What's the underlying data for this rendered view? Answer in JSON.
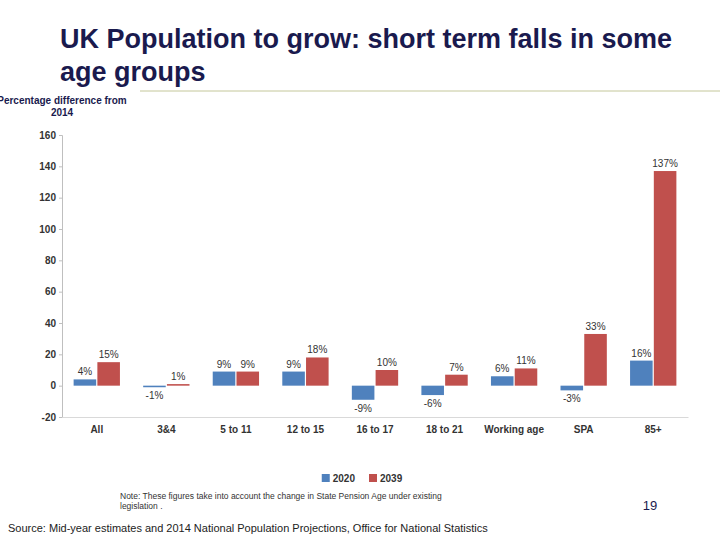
{
  "chart_data": {
    "type": "bar",
    "title": "UK Population to grow: short term falls in some age groups",
    "y_label": "Percentage difference from 2014",
    "categories": [
      "All",
      "3&4",
      "5 to 11",
      "12 to 15",
      "16 to 17",
      "18 to 21",
      "Working age",
      "SPA",
      "85+"
    ],
    "series": [
      {
        "name": "2020",
        "color": "#4f81bd",
        "values": [
          4,
          -1,
          9,
          9,
          -9,
          -6,
          6,
          -3,
          16
        ],
        "value_labels": [
          "4%",
          "-1%",
          "9%",
          "9%",
          "-9%",
          "-6%",
          "6%",
          "-3%",
          "16%"
        ]
      },
      {
        "name": "2039",
        "color": "#c0504d",
        "values": [
          15,
          1,
          9,
          18,
          10,
          7,
          11,
          33,
          137
        ],
        "value_labels": [
          "15%",
          "1%",
          "9%",
          "18%",
          "10%",
          "7%",
          "11%",
          "33%",
          "137%"
        ]
      }
    ],
    "ylim": [
      -20,
      160
    ],
    "yticks": [
      -20,
      0,
      20,
      40,
      60,
      80,
      100,
      120,
      140,
      160
    ],
    "grid": false,
    "legend": "bottom",
    "data_labels": true,
    "note": "Note: These figures take into account the change in State Pension Age under existing legislation .",
    "source": "Source: Mid-year estimates and 2014 National Population Projections, Office for National Statistics",
    "page_number": "19"
  }
}
